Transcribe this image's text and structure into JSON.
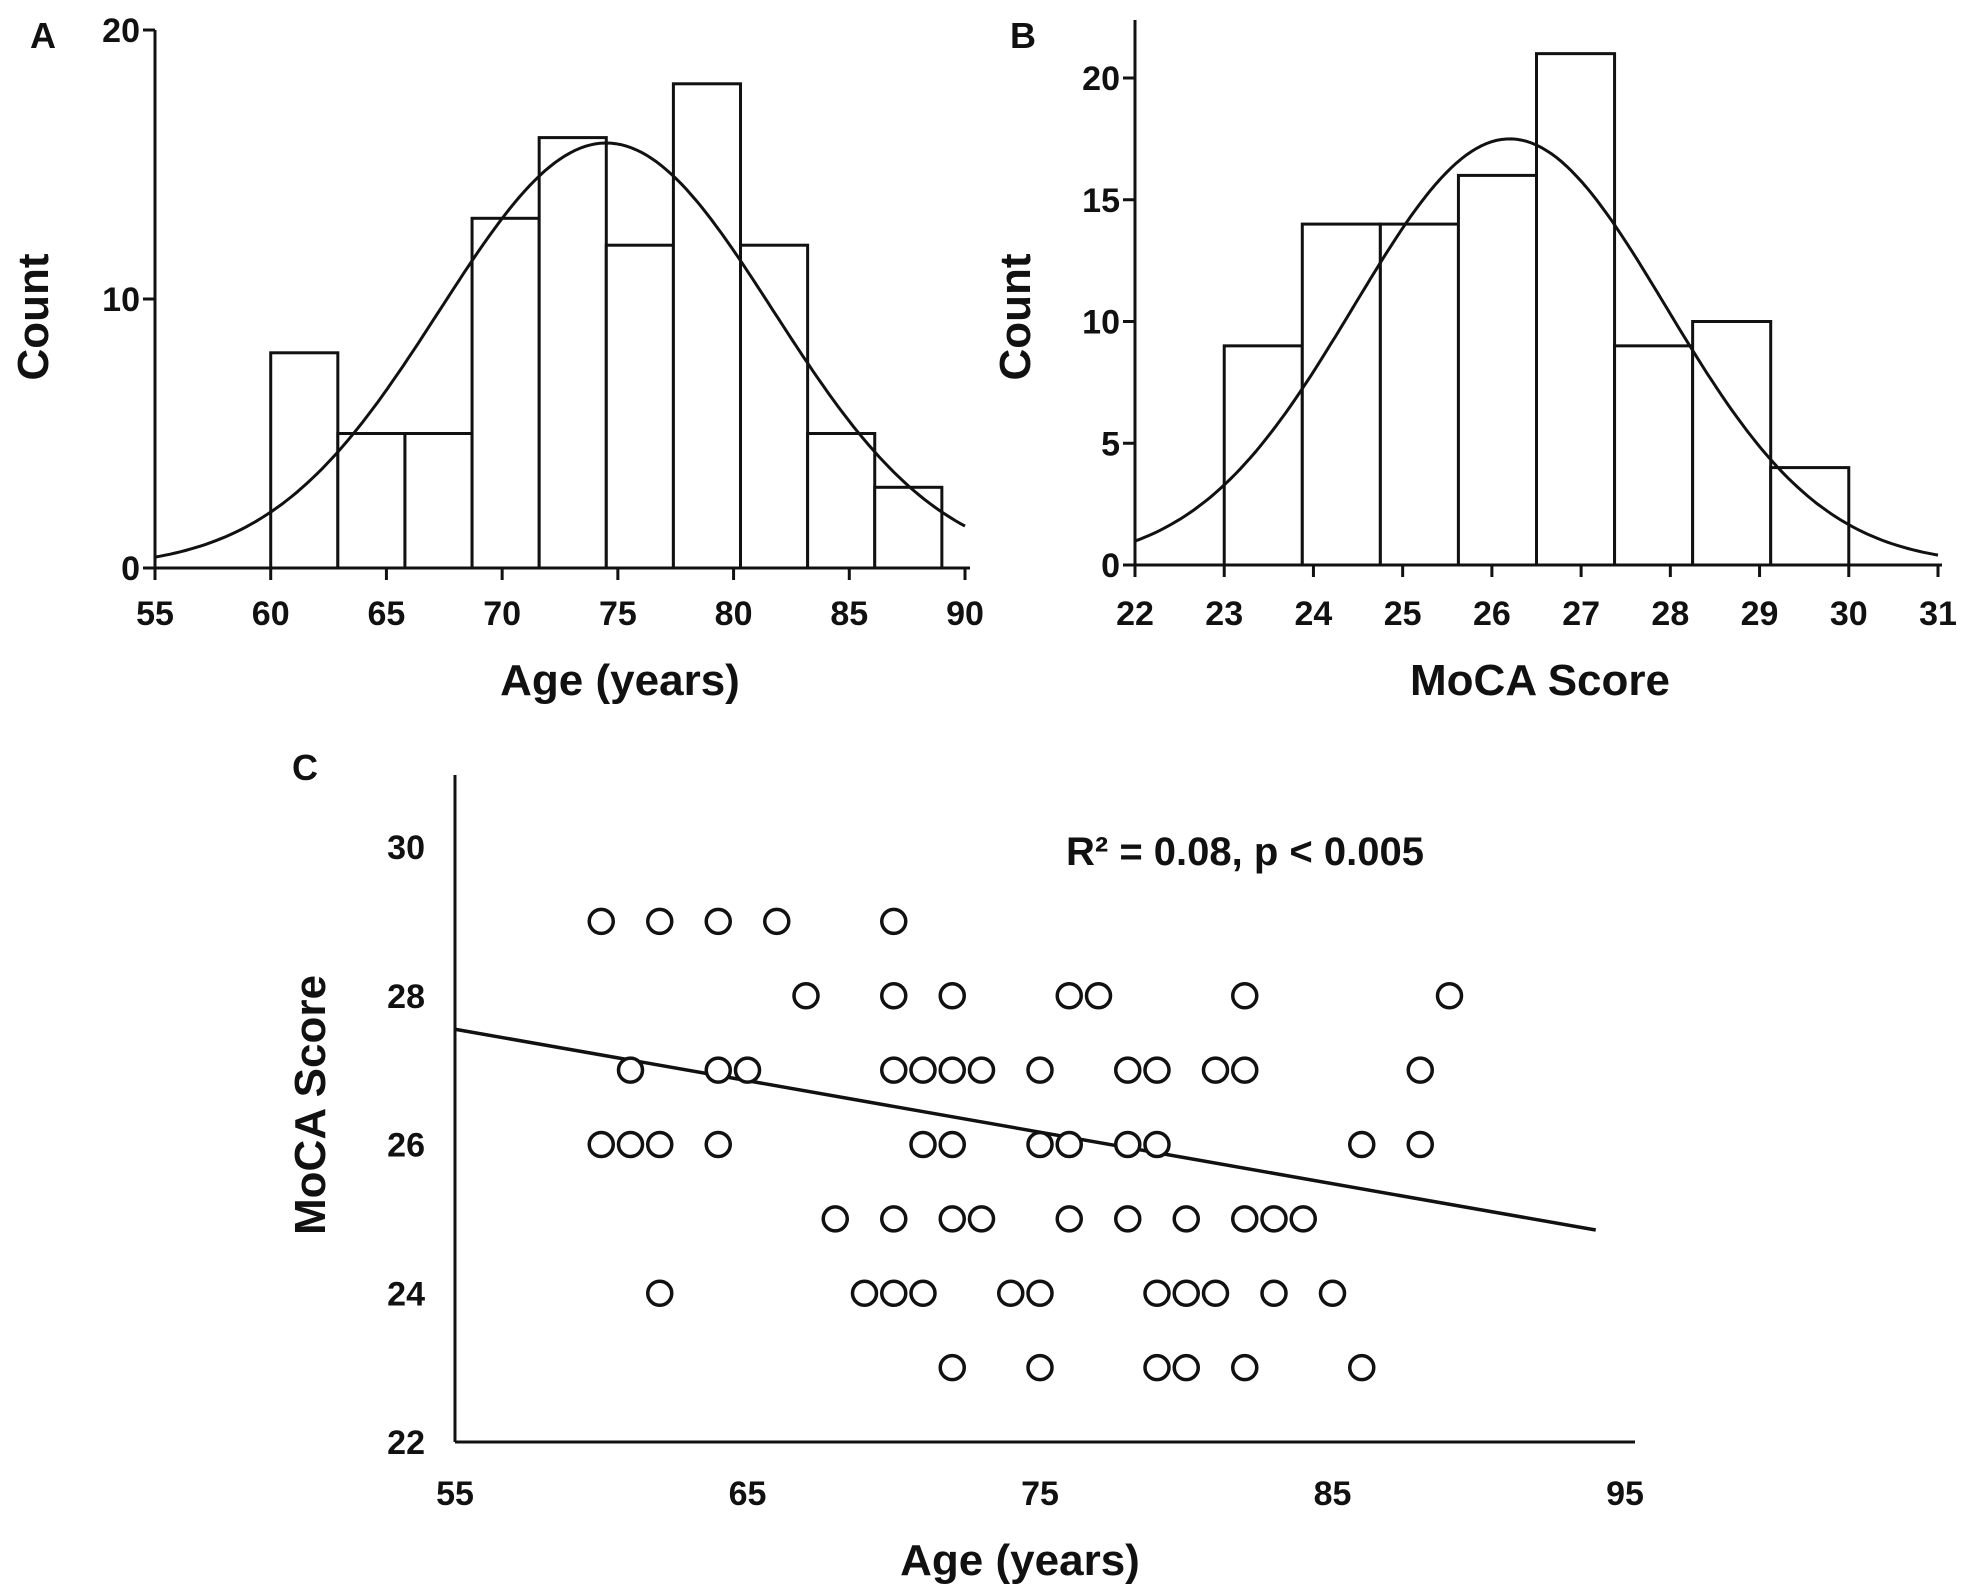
{
  "chart_data": [
    {
      "type": "bar",
      "panel": "A",
      "title": "",
      "xlabel": "Age (years)",
      "ylabel": "Count",
      "xlim": [
        55,
        90
      ],
      "ylim": [
        0,
        20
      ],
      "x_ticks": [
        55,
        60,
        65,
        70,
        75,
        80,
        85,
        90
      ],
      "y_ticks": [
        0,
        10,
        20
      ],
      "bin_edges": [
        60,
        62.9,
        65.8,
        68.7,
        71.6,
        74.5,
        77.4,
        80.3,
        83.2,
        86.1,
        89
      ],
      "values": [
        8,
        5,
        5,
        13,
        16,
        12,
        18,
        12,
        5,
        3
      ],
      "normal_curve": {
        "mean": 74.5,
        "sd": 7.2,
        "peak": 15.8
      }
    },
    {
      "type": "bar",
      "panel": "B",
      "title": "",
      "xlabel": "MoCA Score",
      "ylabel": "Count",
      "xlim": [
        22,
        31
      ],
      "ylim": [
        0,
        22
      ],
      "x_ticks": [
        22,
        23,
        24,
        25,
        26,
        27,
        28,
        29,
        30,
        31
      ],
      "y_ticks": [
        0,
        5,
        10,
        15,
        20
      ],
      "bin_edges": [
        23,
        23.875,
        24.75,
        25.625,
        26.5,
        27.375,
        28.25,
        29.125,
        30
      ],
      "values": [
        9,
        14,
        14,
        16,
        21,
        9,
        10,
        4
      ],
      "normal_curve": {
        "mean": 26.2,
        "sd": 1.75,
        "peak": 17.5
      }
    },
    {
      "type": "scatter",
      "panel": "C",
      "title": "",
      "xlabel": "Age (years)",
      "ylabel": "MoCA Score",
      "xlim": [
        55,
        95
      ],
      "ylim": [
        22,
        31
      ],
      "x_ticks": [
        55,
        65,
        75,
        85,
        95
      ],
      "y_ticks": [
        22,
        24,
        26,
        28,
        30
      ],
      "annotation": "R² = 0.08, p < 0.005",
      "fit_line": {
        "x": [
          55,
          94
        ],
        "y": [
          27.55,
          24.85
        ]
      },
      "points": [
        [
          60,
          29
        ],
        [
          62,
          29
        ],
        [
          64,
          29
        ],
        [
          66,
          29
        ],
        [
          70,
          29
        ],
        [
          67,
          28
        ],
        [
          70,
          28
        ],
        [
          72,
          28
        ],
        [
          76,
          28
        ],
        [
          77,
          28
        ],
        [
          82,
          28
        ],
        [
          89,
          28
        ],
        [
          61,
          27
        ],
        [
          64,
          27
        ],
        [
          65,
          27
        ],
        [
          70,
          27
        ],
        [
          71,
          27
        ],
        [
          72,
          27
        ],
        [
          73,
          27
        ],
        [
          75,
          27
        ],
        [
          78,
          27
        ],
        [
          79,
          27
        ],
        [
          81,
          27
        ],
        [
          82,
          27
        ],
        [
          88,
          27
        ],
        [
          60,
          26
        ],
        [
          61,
          26
        ],
        [
          62,
          26
        ],
        [
          64,
          26
        ],
        [
          71,
          26
        ],
        [
          72,
          26
        ],
        [
          75,
          26
        ],
        [
          76,
          26
        ],
        [
          78,
          26
        ],
        [
          79,
          26
        ],
        [
          86,
          26
        ],
        [
          88,
          26
        ],
        [
          68,
          25
        ],
        [
          70,
          25
        ],
        [
          72,
          25
        ],
        [
          73,
          25
        ],
        [
          76,
          25
        ],
        [
          78,
          25
        ],
        [
          80,
          25
        ],
        [
          82,
          25
        ],
        [
          83,
          25
        ],
        [
          84,
          25
        ],
        [
          62,
          24
        ],
        [
          69,
          24
        ],
        [
          70,
          24
        ],
        [
          71,
          24
        ],
        [
          74,
          24
        ],
        [
          75,
          24
        ],
        [
          79,
          24
        ],
        [
          80,
          24
        ],
        [
          81,
          24
        ],
        [
          83,
          24
        ],
        [
          85,
          24
        ],
        [
          72,
          23
        ],
        [
          75,
          23
        ],
        [
          79,
          23
        ],
        [
          80,
          23
        ],
        [
          82,
          23
        ],
        [
          86,
          23
        ]
      ]
    }
  ]
}
